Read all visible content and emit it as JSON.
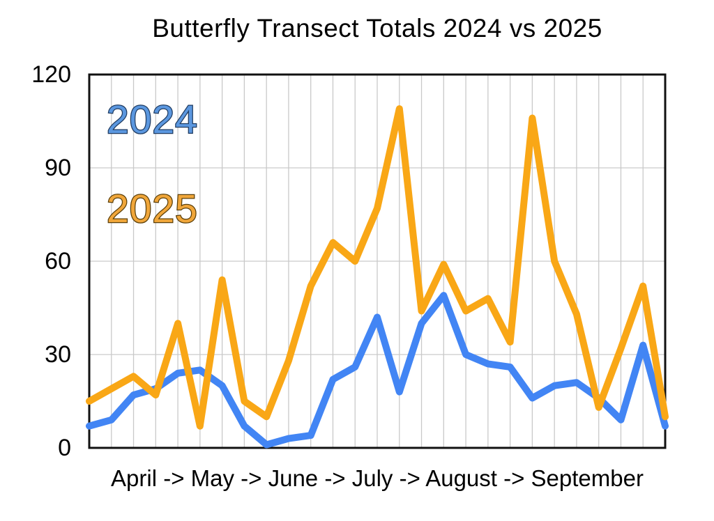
{
  "chart_data": {
    "type": "line",
    "title": "Butterfly Transect Totals 2024 vs 2025",
    "xlabel": "April -> May -> June -> July -> August -> September",
    "x_description": "27 consecutive weekly transect counts from April to September; vertical gridline per week, no individual week tick labels",
    "ylim": [
      0,
      120
    ],
    "yticks": [
      0,
      30,
      60,
      90,
      120
    ],
    "grid": "vertical gridline at every weekly point, horizontal gridlines at 30, 60, 90",
    "legend_position": "inside plot, upper left",
    "series": [
      {
        "name": "2024",
        "color": "#4285F4",
        "legend_fill": "#5B97DF",
        "legend_outline": "#1E3A5F",
        "values": [
          7,
          9,
          17,
          19,
          24,
          25,
          20,
          7,
          1,
          3,
          4,
          22,
          26,
          42,
          18,
          40,
          49,
          30,
          27,
          26,
          16,
          20,
          21,
          16,
          9,
          33,
          7
        ]
      },
      {
        "name": "2025",
        "color": "#F9A716",
        "legend_fill": "#F0A63A",
        "legend_outline": "#5A3E08",
        "values": [
          15,
          19,
          23,
          17,
          40,
          7,
          54,
          15,
          10,
          28,
          52,
          66,
          60,
          77,
          109,
          44,
          59,
          44,
          48,
          34,
          106,
          60,
          43,
          13,
          32,
          52,
          10
        ]
      }
    ]
  },
  "colors": {
    "background": "#FFFFFF",
    "frame": "#111111",
    "gridline": "#C9C9C9",
    "text": "#000000"
  }
}
